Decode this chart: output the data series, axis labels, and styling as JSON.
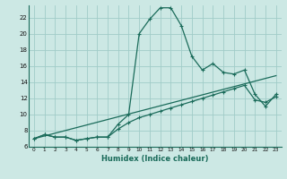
{
  "xlabel": "Humidex (Indice chaleur)",
  "bg_color": "#cce8e4",
  "grid_color": "#a0ccc8",
  "line_color": "#1a6b5a",
  "xlim": [
    -0.5,
    23.5
  ],
  "ylim": [
    6,
    23.5
  ],
  "xticks": [
    0,
    1,
    2,
    3,
    4,
    5,
    6,
    7,
    8,
    9,
    10,
    11,
    12,
    13,
    14,
    15,
    16,
    17,
    18,
    19,
    20,
    21,
    22,
    23
  ],
  "yticks": [
    6,
    8,
    10,
    12,
    14,
    16,
    18,
    20,
    22
  ],
  "curve1_x": [
    0,
    1,
    2,
    3,
    4,
    5,
    6,
    7,
    8,
    9,
    10,
    11,
    12,
    13,
    14,
    15,
    16,
    17,
    18,
    19,
    20,
    21,
    22,
    23
  ],
  "curve1_y": [
    7.0,
    7.5,
    7.2,
    7.2,
    6.8,
    7.0,
    7.2,
    7.2,
    8.8,
    10.0,
    20.0,
    21.8,
    23.2,
    23.2,
    21.0,
    17.2,
    15.5,
    16.3,
    15.2,
    15.0,
    15.5,
    12.5,
    11.0,
    12.5
  ],
  "curve2_x": [
    0,
    1,
    2,
    3,
    4,
    5,
    6,
    7,
    8,
    9,
    10,
    11,
    12,
    13,
    14,
    15,
    16,
    17,
    18,
    19,
    20,
    21,
    22,
    23
  ],
  "curve2_y": [
    7.0,
    7.5,
    7.2,
    7.2,
    6.8,
    7.0,
    7.2,
    7.2,
    8.2,
    9.0,
    9.6,
    10.0,
    10.4,
    10.8,
    11.2,
    11.6,
    12.0,
    12.4,
    12.8,
    13.2,
    13.6,
    11.8,
    11.5,
    12.2
  ],
  "line_x": [
    0,
    23
  ],
  "line_y": [
    7.0,
    14.8
  ]
}
